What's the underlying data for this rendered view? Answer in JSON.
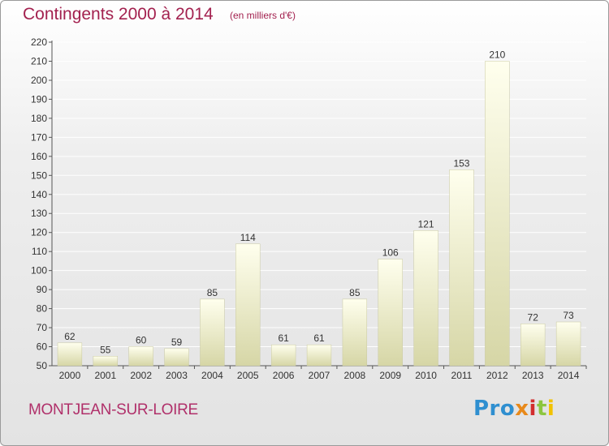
{
  "header": {
    "title": "Contingents 2000 à 2014",
    "subtitle": "(en milliers d'€)"
  },
  "footer": {
    "commune": "MONTJEAN-SUR-LOIRE",
    "logo": [
      "Pro",
      "x",
      "i",
      "t",
      "i"
    ]
  },
  "colors": {
    "title": "#a3214f",
    "commune": "#b0306a",
    "bar_top": "#ffffee",
    "bar_bottom": "#d6d6a6",
    "axis": "#555555",
    "grid": "#ffffff"
  },
  "chart_data": {
    "type": "bar",
    "title": "Contingents 2000 à 2014",
    "subtitle": "(en milliers d'€)",
    "categories": [
      "2000",
      "2001",
      "2002",
      "2003",
      "2004",
      "2005",
      "2006",
      "2007",
      "2008",
      "2009",
      "2010",
      "2011",
      "2012",
      "2013",
      "2014"
    ],
    "values": [
      62,
      55,
      60,
      59,
      85,
      114,
      61,
      61,
      85,
      106,
      121,
      153,
      210,
      72,
      73
    ],
    "ylim": [
      50,
      220
    ],
    "yticks": [
      50,
      60,
      70,
      80,
      90,
      100,
      110,
      120,
      130,
      140,
      150,
      160,
      170,
      180,
      190,
      200,
      210,
      220
    ],
    "grid": true,
    "data_labels": true
  }
}
